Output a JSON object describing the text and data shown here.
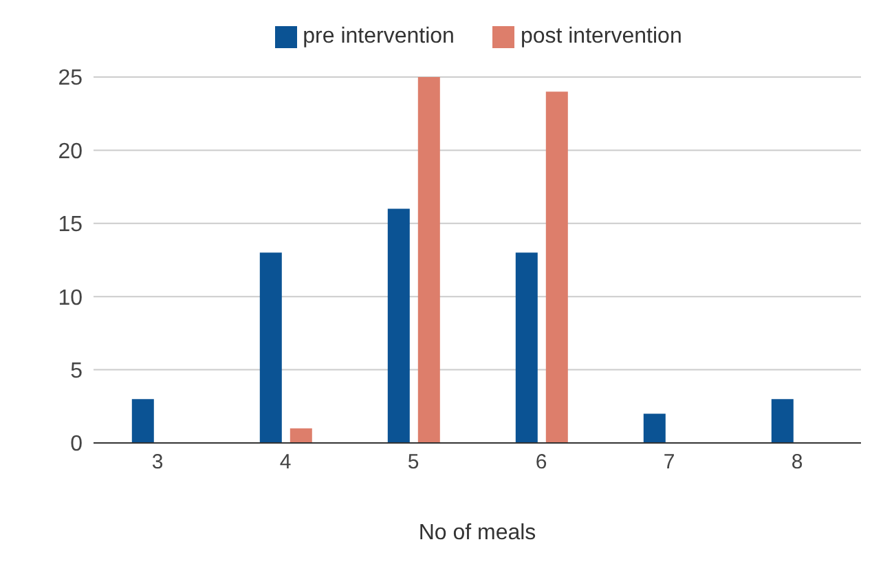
{
  "chart_data": {
    "type": "bar",
    "xlabel": "No of meals",
    "categories": [
      "3",
      "4",
      "5",
      "6",
      "7",
      "8"
    ],
    "series": [
      {
        "name": "pre intervention",
        "color": "#0b5394",
        "values": [
          3,
          13,
          16,
          13,
          2,
          3
        ]
      },
      {
        "name": "post intervention",
        "color": "#dd7e6b",
        "values": [
          0,
          1,
          25,
          24,
          0,
          0
        ]
      }
    ],
    "ylim": [
      0,
      25
    ],
    "yticks": [
      0,
      5,
      10,
      15,
      20,
      25
    ],
    "grid": "y",
    "legend": "top"
  }
}
